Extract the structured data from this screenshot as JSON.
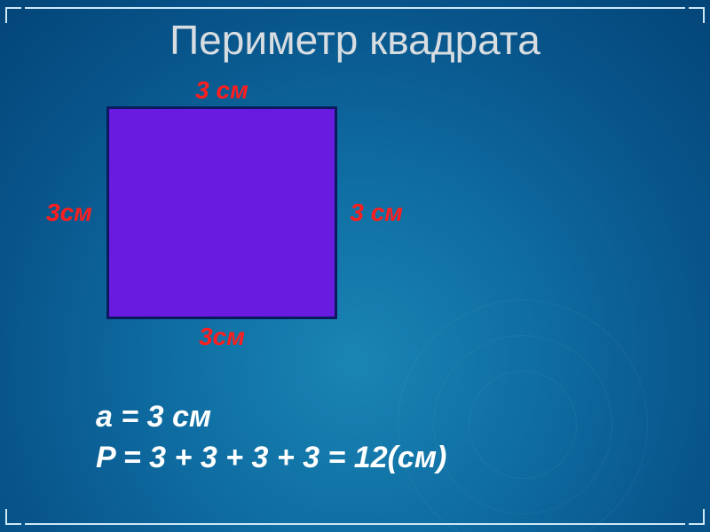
{
  "title": {
    "text": "Периметр квадрата",
    "color": "#d7dde1",
    "fontsize": 46
  },
  "diagram": {
    "type": "infographic",
    "shape": "square",
    "fill_color": "#6a1be0",
    "border_color": "#0a1a5c",
    "border_width": 3,
    "label_color": "#ff1e1e",
    "label_fontsize": 28,
    "labels": {
      "top": "3 см",
      "right": "3 см",
      "bottom": "3см",
      "left": "3см"
    }
  },
  "formula": {
    "line1": "a = 3 см",
    "line2": "P = 3 + 3 + 3 + 3 = 12(см)",
    "color": "#ffffff",
    "fontsize": 34
  },
  "frame": {
    "line_color": "#cfe8f5"
  },
  "background": {
    "gradient_center": "#1a85b3",
    "gradient_edge": "#034578"
  }
}
